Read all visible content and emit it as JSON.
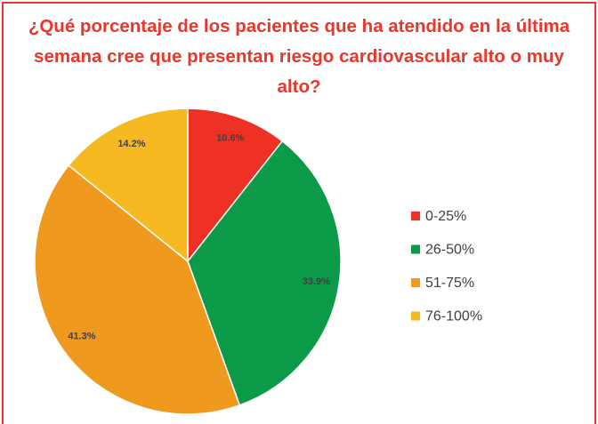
{
  "chart_data": {
    "type": "pie",
    "title": "¿Qué porcentaje de los pacientes que ha atendido en la última semana cree que presentan riesgo cardiovascular alto o muy alto?",
    "categories": [
      "0-25%",
      "26-50%",
      "51-75%",
      "76-100%"
    ],
    "values": [
      10.6,
      33.9,
      41.3,
      14.2
    ],
    "value_labels": [
      "10.6%",
      "33.9%",
      "41.3%",
      "14.2%"
    ],
    "colors": [
      "#ee3124",
      "#0a9a48",
      "#f0991f",
      "#f6b921"
    ],
    "legend": "right"
  }
}
